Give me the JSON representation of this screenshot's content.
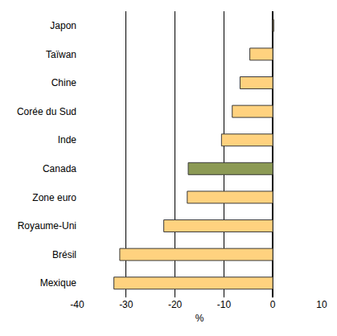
{
  "chart_data": {
    "type": "bar",
    "orientation": "horizontal",
    "categories": [
      "Japon",
      "Taïwan",
      "Chine",
      "Corée du Sud",
      "Inde",
      "Canada",
      "Zone euro",
      "Royaume-Uni",
      "Brésil",
      "Mexique"
    ],
    "values": [
      0.2,
      -4.7,
      -6.7,
      -8.3,
      -10.5,
      -17.3,
      -17.5,
      -22.3,
      -31.3,
      -32.5
    ],
    "colors": [
      "#FFD27F",
      "#FFD27F",
      "#FFD27F",
      "#FFD27F",
      "#FFD27F",
      "#8C9A55",
      "#FFD27F",
      "#FFD27F",
      "#FFD27F",
      "#FFD27F"
    ],
    "xlabel": "%",
    "xlim": [
      -40,
      10
    ],
    "xticks": [
      -40,
      -30,
      -20,
      -10,
      0,
      10
    ],
    "grid": true
  }
}
